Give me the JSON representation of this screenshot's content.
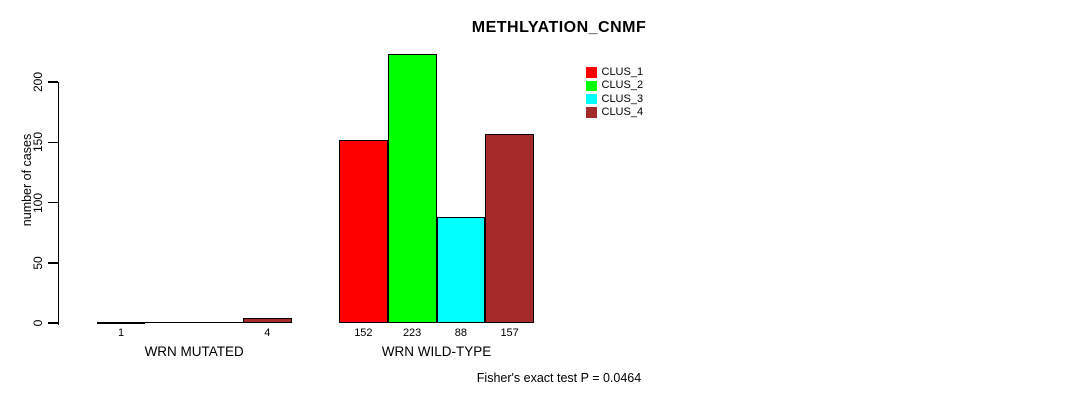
{
  "chart_data": {
    "type": "bar",
    "title": "METHLYATION_CNMF",
    "ylabel": "number of cases",
    "xlabel": "",
    "footnote": "Fisher's exact test P = 0.0464",
    "ylim": [
      0,
      200
    ],
    "yticks": [
      0,
      50,
      100,
      150,
      200
    ],
    "grid": false,
    "legend_position": "top-right-inside",
    "categories": [
      "WRN MUTATED",
      "WRN WILD-TYPE"
    ],
    "series": [
      {
        "name": "CLUS_1",
        "color": "#ff0000",
        "values": [
          1,
          152
        ]
      },
      {
        "name": "CLUS_2",
        "color": "#00ff00",
        "values": [
          0,
          223
        ]
      },
      {
        "name": "CLUS_3",
        "color": "#00ffff",
        "values": [
          0,
          88
        ]
      },
      {
        "name": "CLUS_4",
        "color": "#a52a2a",
        "values": [
          4,
          157
        ]
      }
    ],
    "value_labels": [
      [
        "1",
        "",
        "",
        "4"
      ],
      [
        "152",
        "223",
        "88",
        "157"
      ]
    ],
    "colors": {
      "bar_border": "#000000",
      "axis": "#000000",
      "text": "#000000",
      "background": "#ffffff"
    }
  }
}
